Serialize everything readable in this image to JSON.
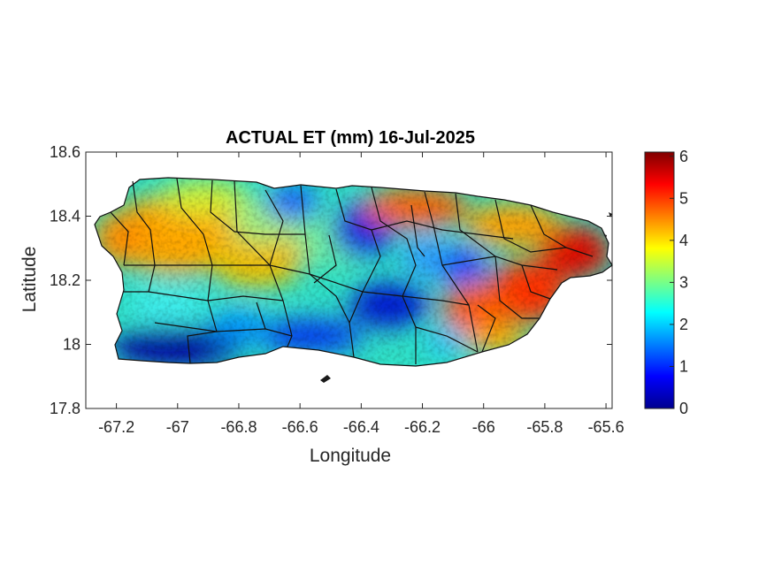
{
  "chart_data": {
    "type": "heatmap",
    "title": "ACTUAL ET (mm) 16-Jul-2025",
    "xlabel": "Longitude",
    "ylabel": "Latitude",
    "xlim": [
      -67.3,
      -65.58
    ],
    "ylim": [
      17.8,
      18.6
    ],
    "xticks": [
      "-67.2",
      "-67",
      "-66.8",
      "-66.6",
      "-66.4",
      "-66.2",
      "-66",
      "-65.8",
      "-65.6"
    ],
    "yticks": [
      "18.6",
      "18.4",
      "18.2",
      "18",
      "17.8"
    ],
    "xtick_values": [
      -67.2,
      -67,
      -66.8,
      -66.6,
      -66.4,
      -66.2,
      -66,
      -65.8,
      -65.6
    ],
    "ytick_values": [
      18.6,
      18.4,
      18.2,
      18,
      17.8
    ],
    "colormap": "jet",
    "colorbar": {
      "range": [
        0,
        6.1
      ],
      "ticks": [
        "0",
        "1",
        "2",
        "3",
        "4",
        "5",
        "6"
      ],
      "tick_values": [
        0,
        1,
        2,
        3,
        4,
        5,
        6
      ],
      "colors": [
        "#00008f",
        "#0000ff",
        "#00ffff",
        "#ffff00",
        "#ff0000",
        "#800000"
      ]
    },
    "grid": false,
    "approx_regions_mm": [
      {
        "area": "southwest coast",
        "value": 0.5
      },
      {
        "area": "northwest",
        "value": 4.2
      },
      {
        "area": "west-central interior",
        "value": 3.8
      },
      {
        "area": "central interior",
        "value": 1.5
      },
      {
        "area": "north-central coast",
        "value": 0.8
      },
      {
        "area": "south-central coast",
        "value": 1.2
      },
      {
        "area": "northeast",
        "value": 4.8
      },
      {
        "area": "east-southeast",
        "value": 5.5
      }
    ]
  }
}
